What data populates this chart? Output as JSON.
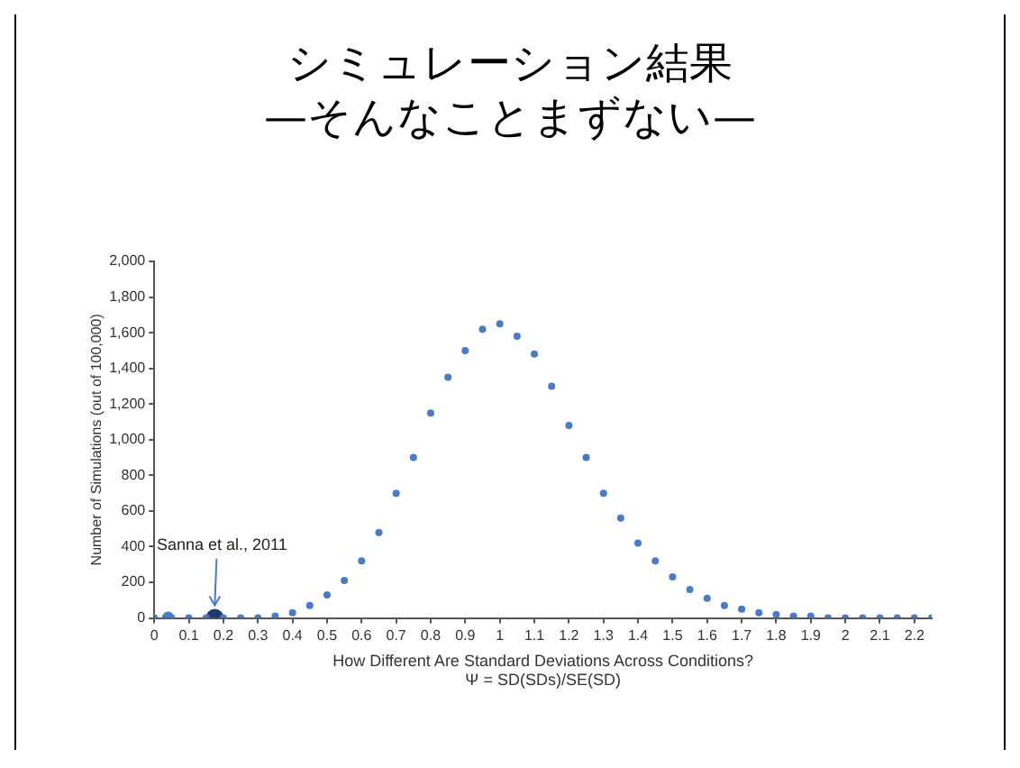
{
  "chart_data": {
    "type": "scatter",
    "title": "シミュレーション結果",
    "subtitle": "—そんなことまずない—",
    "xlabel": "How Different Are Standard Deviations Across Conditions?\nΨ = SD(SDs)/SE(SD)",
    "ylabel": "Number of Simulations (out of 100,000)",
    "x": [
      0,
      0.05,
      0.1,
      0.15,
      0.2,
      0.25,
      0.3,
      0.35,
      0.4,
      0.45,
      0.5,
      0.55,
      0.6,
      0.65,
      0.7,
      0.75,
      0.8,
      0.85,
      0.9,
      0.95,
      1.0,
      1.05,
      1.1,
      1.15,
      1.2,
      1.25,
      1.3,
      1.35,
      1.4,
      1.45,
      1.5,
      1.55,
      1.6,
      1.65,
      1.7,
      1.75,
      1.8,
      1.85,
      1.9,
      1.95,
      2.0,
      2.05,
      2.1,
      2.15,
      2.2,
      2.25
    ],
    "series": [
      {
        "color": "#4a7bc4",
        "values": [
          0,
          0,
          0,
          0,
          0,
          0,
          0,
          10,
          30,
          70,
          130,
          210,
          320,
          480,
          700,
          900,
          1150,
          1350,
          1500,
          1620,
          1650,
          1580,
          1480,
          1300,
          1080,
          900,
          700,
          560,
          420,
          320,
          230,
          160,
          110,
          70,
          50,
          30,
          20,
          10,
          10,
          0,
          0,
          0,
          0,
          0,
          0,
          0
        ]
      },
      {
        "color": "#4a7bc4",
        "x": [
          0.04
        ],
        "values": [
          0
        ],
        "marker": "circle"
      },
      {
        "color": "#1f3a6b",
        "x": [
          0.175
        ],
        "values": [
          0
        ],
        "marker": "circle"
      }
    ],
    "xlim": [
      0,
      2.25
    ],
    "xticks": [
      0,
      0.1,
      0.2,
      0.3,
      0.4,
      0.5,
      0.6,
      0.7,
      0.8,
      0.9,
      1,
      1.1,
      1.2,
      1.3,
      1.4,
      1.5,
      1.6,
      1.7,
      1.8,
      1.9,
      2,
      2.1,
      2.2
    ],
    "ylim": [
      0,
      2000
    ],
    "yticks": [
      0,
      200,
      400,
      600,
      800,
      {
        "value": 1000,
        "label": "1,000"
      },
      {
        "value": 1200,
        "label": "1,200"
      },
      {
        "value": 1400,
        "label": "1,400"
      },
      {
        "value": 1600,
        "label": "1,600"
      },
      {
        "value": 1800,
        "label": "1,800"
      },
      {
        "value": 2000,
        "label": "2,000"
      }
    ],
    "annotations": [
      {
        "text": "Sanna et al., 2011",
        "x": 0.175,
        "y": 0
      }
    ],
    "grid": false,
    "legend": false,
    "marker": "circle"
  }
}
